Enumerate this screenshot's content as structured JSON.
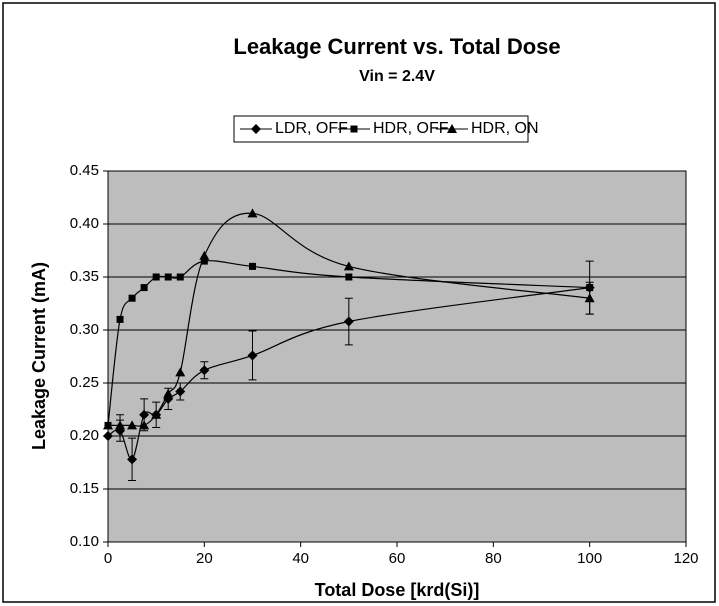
{
  "chart_data": {
    "type": "line",
    "title": "Leakage Current vs. Total Dose",
    "subtitle": "Vin = 2.4V",
    "xlabel": "Total Dose [krd(Si)]",
    "ylabel": "Leakage Current (mA)",
    "xlim": [
      0,
      120
    ],
    "xticks": [
      0,
      20,
      40,
      60,
      80,
      100,
      120
    ],
    "ylim": [
      0.1,
      0.45
    ],
    "yticks": [
      {
        "value": 0.1,
        "label": "0.10"
      },
      {
        "value": 0.15,
        "label": "0.15"
      },
      {
        "value": 0.2,
        "label": "0.20"
      },
      {
        "value": 0.25,
        "label": "0.25"
      },
      {
        "value": 0.3,
        "label": "0.30"
      },
      {
        "value": 0.35,
        "label": "0.35"
      },
      {
        "value": 0.4,
        "label": "0.40"
      },
      {
        "value": 0.45,
        "label": "0.45"
      }
    ],
    "grid": true,
    "series": [
      {
        "name": "LDR, OFF",
        "marker": "diamond",
        "color": "#000000",
        "x": [
          0,
          2.5,
          5,
          7.5,
          10,
          12.5,
          15,
          20,
          30,
          50,
          100
        ],
        "values": [
          0.2,
          0.205,
          0.178,
          0.22,
          0.22,
          0.235,
          0.242,
          0.262,
          0.276,
          0.308,
          0.34
        ],
        "errors": [
          null,
          0.01,
          0.02,
          0.015,
          0.012,
          0.01,
          0.008,
          0.008,
          0.023,
          0.022,
          0.025
        ]
      },
      {
        "name": "HDR, OFF",
        "marker": "square",
        "color": "#000000",
        "x": [
          0,
          2.5,
          5,
          7.5,
          10,
          12.5,
          15,
          20,
          30,
          50,
          100
        ],
        "values": [
          0.21,
          0.31,
          0.33,
          0.34,
          0.35,
          0.35,
          0.35,
          0.365,
          0.36,
          0.35,
          0.34
        ]
      },
      {
        "name": "HDR, ON",
        "marker": "triangle",
        "color": "#000000",
        "x": [
          0,
          2.5,
          5,
          7.5,
          10,
          12.5,
          15,
          20,
          30,
          50,
          100
        ],
        "values": [
          0.21,
          0.21,
          0.21,
          0.21,
          0.22,
          0.24,
          0.26,
          0.37,
          0.41,
          0.36,
          0.33
        ],
        "errors": [
          null,
          0.01,
          null,
          null,
          null,
          null,
          null,
          null,
          null,
          null,
          0.015
        ]
      }
    ]
  }
}
